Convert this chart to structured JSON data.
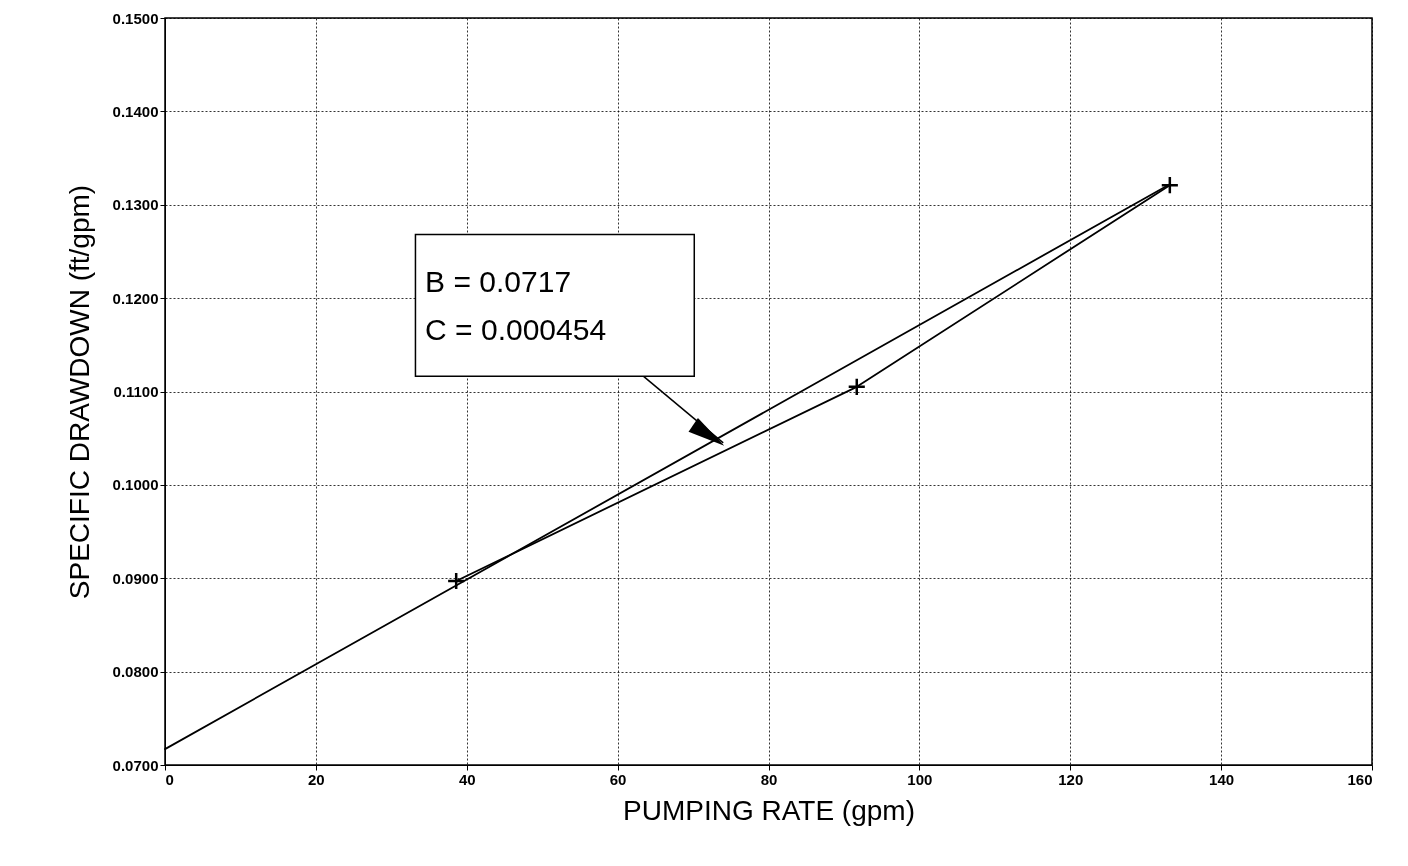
{
  "chart_data": {
    "type": "line",
    "xlabel": "PUMPING RATE (gpm)",
    "ylabel": "SPECIFIC DRAWDOWN (ft/gpm)",
    "xlim": [
      0,
      160
    ],
    "xticks": [
      0,
      20,
      40,
      60,
      80,
      100,
      120,
      140,
      160
    ],
    "ylim": [
      0.07,
      0.15
    ],
    "yticks": [
      {
        "value": 0.07,
        "label": "0.0700"
      },
      {
        "value": 0.08,
        "label": "0.0800"
      },
      {
        "value": 0.09,
        "label": "0.0900"
      },
      {
        "value": 0.1,
        "label": "0.1000"
      },
      {
        "value": 0.11,
        "label": "0.1100"
      },
      {
        "value": 0.12,
        "label": "0.1200"
      },
      {
        "value": 0.13,
        "label": "0.1300"
      },
      {
        "value": 0.14,
        "label": "0.1400"
      },
      {
        "value": 0.15,
        "label": "0.1500"
      }
    ],
    "grid": true,
    "series": [
      {
        "color": "#000000",
        "marker": "cross",
        "x": [
          38.6,
          91.7,
          133.2
        ],
        "values": [
          0.0897,
          0.1105,
          0.1321
        ]
      },
      {
        "color": "#000000",
        "x": [
          0,
          133.2
        ],
        "values": [
          0.0717,
          0.1322
        ]
      }
    ],
    "annotations": [
      "B = 0.0717\nC = 0.000454"
    ]
  }
}
